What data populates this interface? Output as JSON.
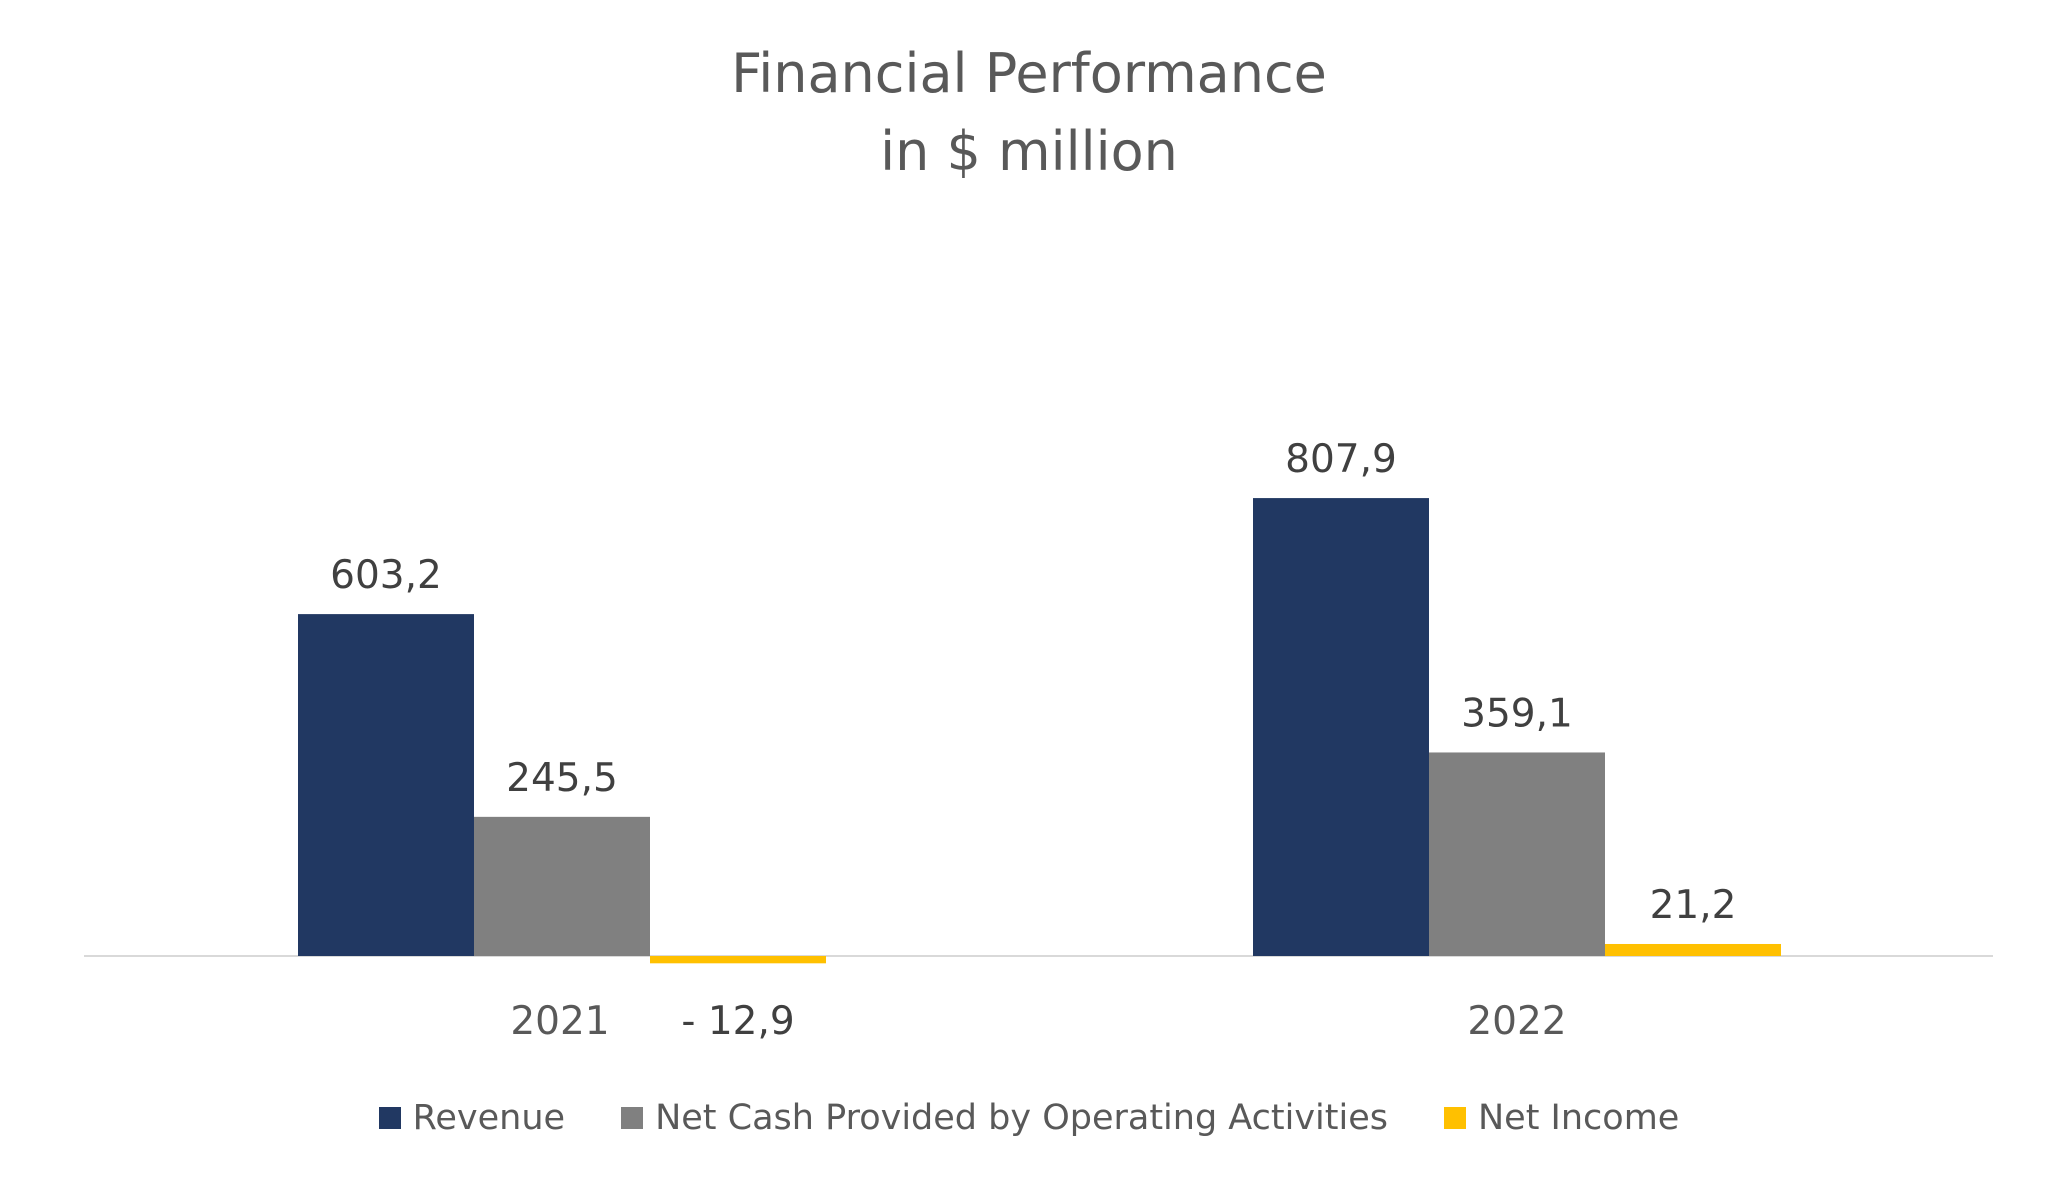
{
  "chart_data": {
    "type": "bar",
    "title": "Financial Performance",
    "subtitle": "in $ million",
    "categories": [
      "2021",
      "2022"
    ],
    "series": [
      {
        "name": "Revenue",
        "color": "#213862",
        "values": [
          603.2,
          807.9
        ],
        "labels": [
          "603,2",
          "807,9"
        ]
      },
      {
        "name": "Net Cash Provided by Operating Activities",
        "color": "#808080",
        "values": [
          245.5,
          359.1
        ],
        "labels": [
          "245,5",
          "359,1"
        ]
      },
      {
        "name": "Net Income",
        "color": "#FFC000",
        "values": [
          -12.9,
          21.2
        ],
        "labels": [
          "- 12,9",
          "21,2"
        ]
      }
    ],
    "ylim": [
      -30,
      900
    ],
    "xlabel": "",
    "ylabel": "",
    "grid": false,
    "legend_position": "bottom",
    "axis_color": "#D9D9D9",
    "text_color": "#404040"
  }
}
